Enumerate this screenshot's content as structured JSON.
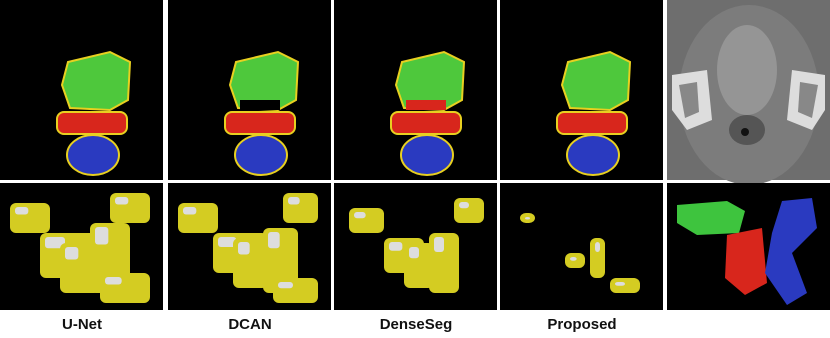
{
  "labels": [
    "U-Net",
    "DCAN",
    "DenseSeg",
    "Proposed"
  ]
}
